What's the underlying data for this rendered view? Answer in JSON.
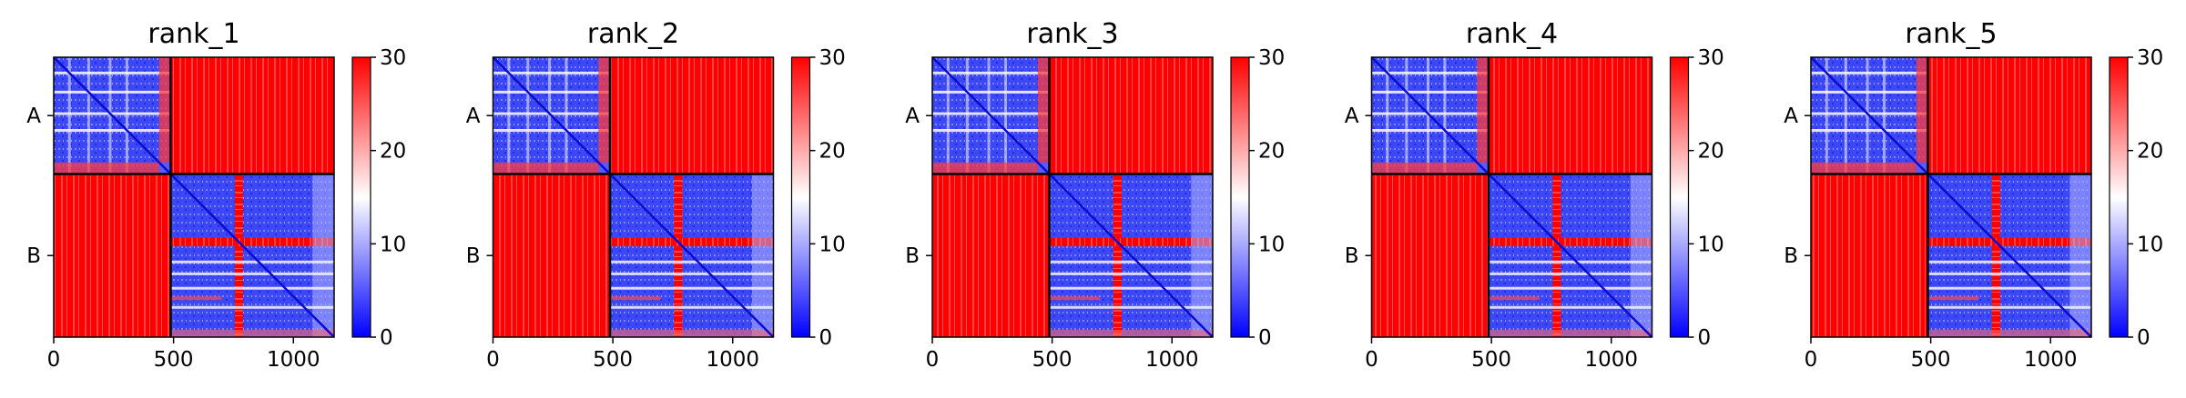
{
  "chart_data": {
    "type": "heatmap",
    "xticks": [
      0,
      500,
      1000
    ],
    "x_range": [
      0,
      1170
    ],
    "chain_boundary": 488,
    "chain_labels": [
      "A",
      "B"
    ],
    "colorbar": {
      "ticks": [
        0,
        10,
        20,
        30
      ],
      "range": [
        0,
        30
      ],
      "colors": [
        "#0000ff",
        "#ffffff",
        "#ff0000"
      ]
    },
    "panels": [
      {
        "title": "rank_1"
      },
      {
        "title": "rank_2"
      },
      {
        "title": "rank_3"
      },
      {
        "title": "rank_4"
      },
      {
        "title": "rank_5"
      }
    ],
    "grid": false
  }
}
